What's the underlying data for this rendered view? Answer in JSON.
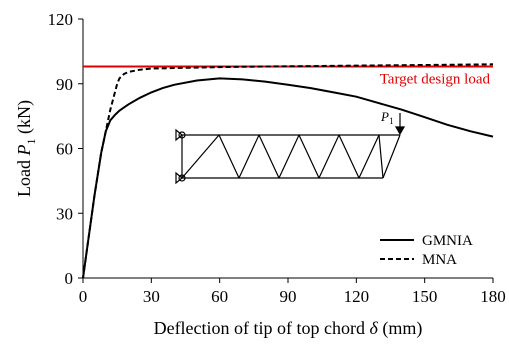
{
  "chart_data": {
    "type": "line",
    "xlabel_parts": [
      "Deflection of tip of top chord ",
      "δ",
      " (mm)"
    ],
    "ylabel_parts": [
      "Load ",
      "P",
      "1",
      " (kN)"
    ],
    "xlim": [
      0,
      180
    ],
    "ylim": [
      0,
      120
    ],
    "xticks": [
      0,
      30,
      60,
      90,
      120,
      150,
      180
    ],
    "yticks": [
      0,
      30,
      60,
      90,
      120
    ],
    "grid": false,
    "legend_position": "bottom-right",
    "series": [
      {
        "name": "GMNIA",
        "style": "solid",
        "x": [
          0,
          5,
          8,
          10,
          12,
          14,
          16,
          20,
          25,
          30,
          35,
          40,
          50,
          60,
          70,
          80,
          90,
          100,
          110,
          120,
          130,
          140,
          150,
          160,
          170,
          180
        ],
        "y": [
          0,
          38,
          58,
          68,
          73,
          75.5,
          77.5,
          80.5,
          83.5,
          86,
          88,
          89.5,
          91.5,
          92.5,
          92,
          91,
          89.5,
          88,
          86,
          84,
          81,
          78,
          74.5,
          71,
          68,
          65.5
        ]
      },
      {
        "name": "MNA",
        "style": "dashed",
        "x": [
          0,
          5,
          8,
          10,
          12,
          14,
          15,
          16,
          18,
          20,
          25,
          30,
          40,
          50,
          60,
          80,
          100,
          120,
          140,
          160,
          180
        ],
        "y": [
          0,
          38,
          58,
          68,
          78,
          86,
          90,
          92.5,
          94.5,
          95.5,
          96.5,
          97,
          97.3,
          97.5,
          97.7,
          98,
          98.2,
          98.4,
          98.6,
          98.8,
          99
        ]
      }
    ],
    "reference_line": {
      "label": "Target design load",
      "y": 98,
      "color": "#e00000"
    },
    "inset_label": {
      "base": "P",
      "sub": "1"
    },
    "colors": {
      "axis": "#000000",
      "series": "#000000",
      "target": "#e00000"
    }
  }
}
